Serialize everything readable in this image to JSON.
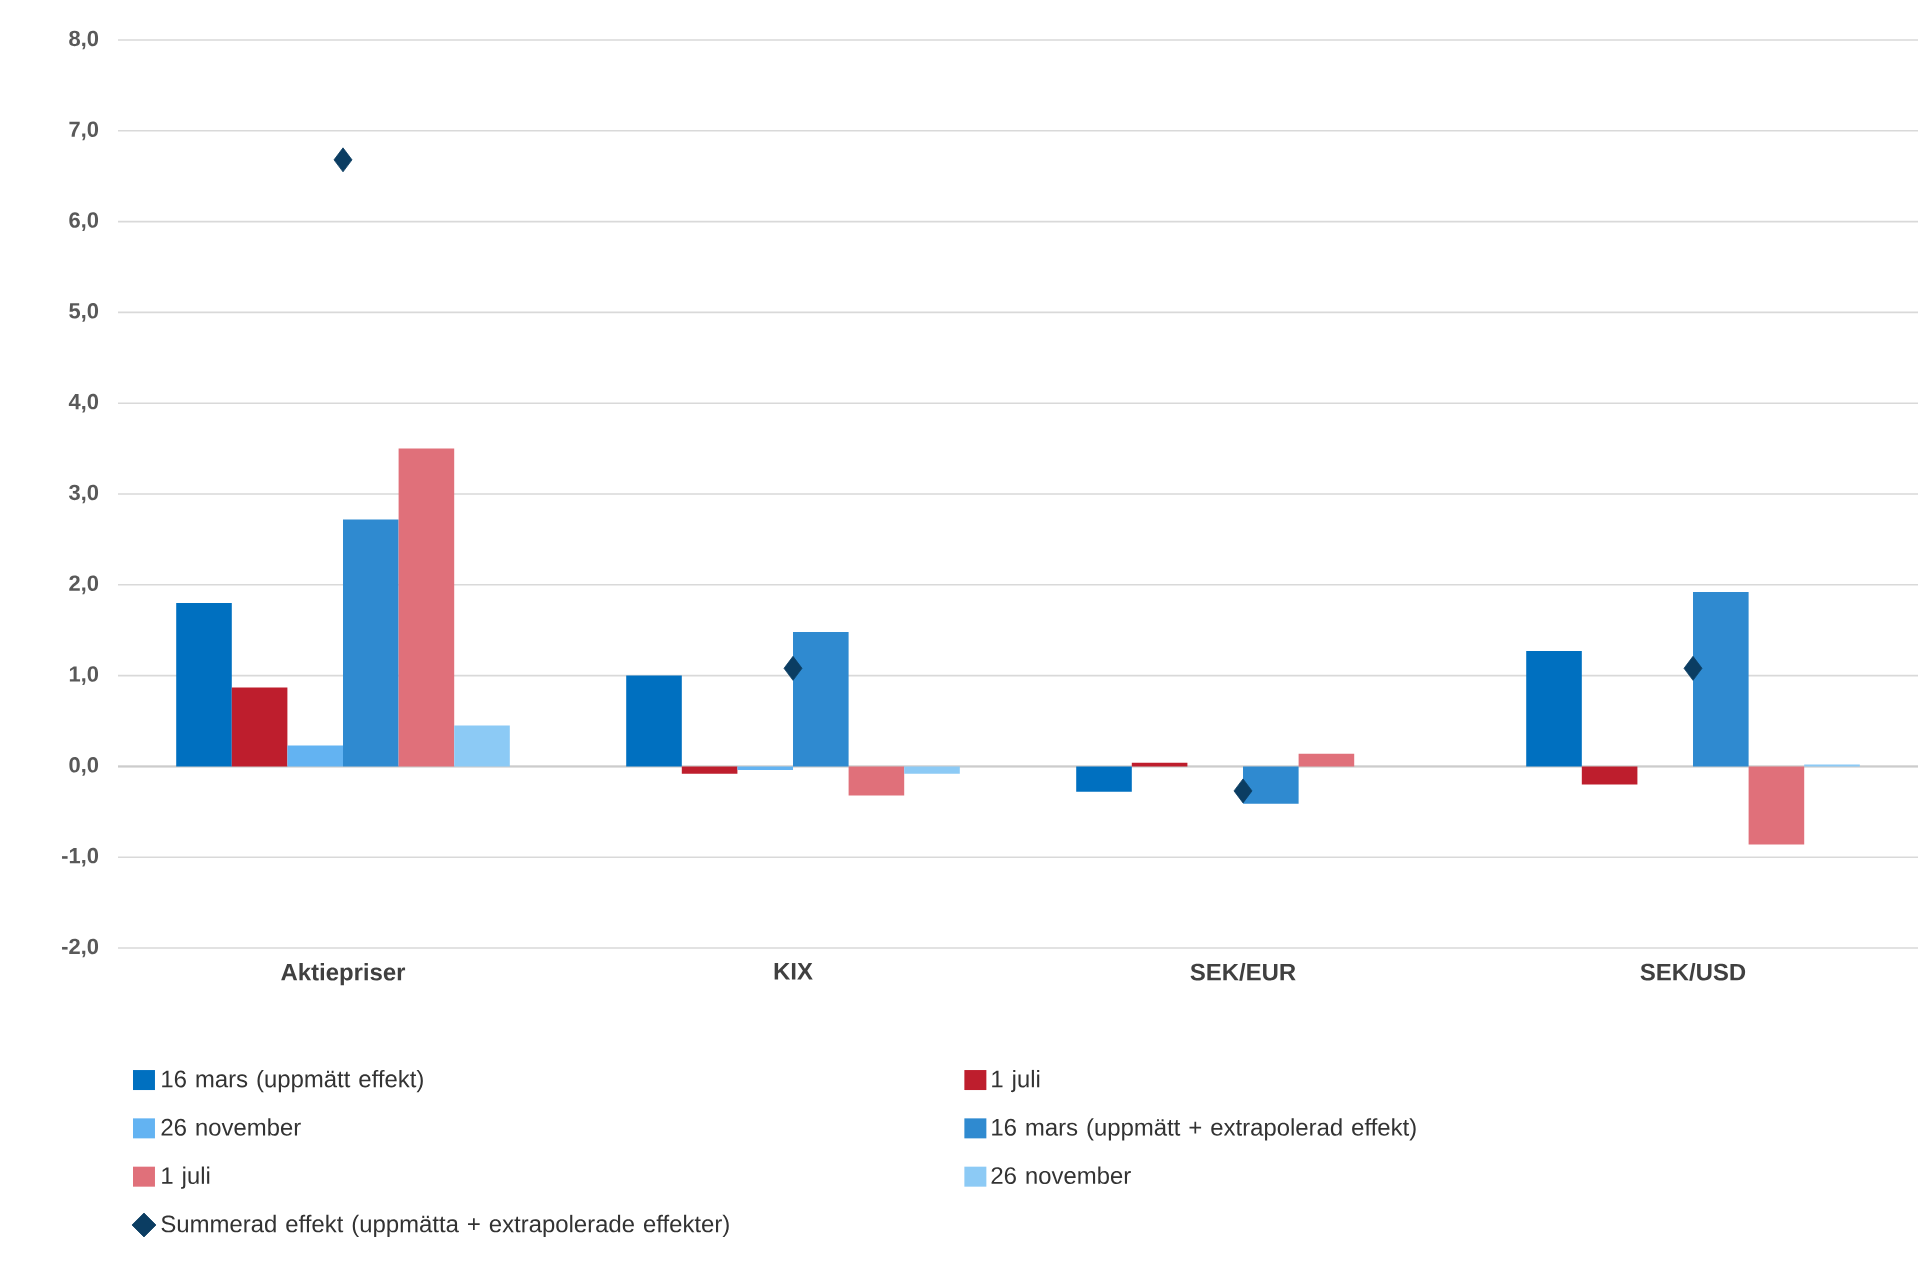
{
  "chart_data": {
    "type": "bar",
    "categories": [
      "Aktiepriser",
      "KIX",
      "SEK/EUR",
      "SEK/USD"
    ],
    "series": [
      {
        "name": "16 mars (uppmätt effekt)",
        "color": "#0070c0",
        "values": [
          1.8,
          1.0,
          -0.28,
          1.27
        ]
      },
      {
        "name": "1 juli",
        "color": "#be1e2d",
        "values": [
          0.87,
          -0.08,
          0.04,
          -0.2
        ]
      },
      {
        "name": "26 november",
        "color": "#63b3f2",
        "values": [
          0.23,
          -0.04,
          0.0,
          0.0
        ]
      },
      {
        "name": "16 mars (uppmätt + extrapolerad effekt)",
        "color": "#2f8ad0",
        "values": [
          2.72,
          1.48,
          -0.41,
          1.92
        ]
      },
      {
        "name": "1 juli",
        "color": "#e0707a",
        "values": [
          3.5,
          -0.32,
          0.14,
          -0.86
        ]
      },
      {
        "name": "26 november",
        "color": "#8ccaf5",
        "values": [
          0.45,
          -0.08,
          0.0,
          0.02
        ]
      },
      {
        "name": "Summerad effekt (uppmätta + extrapolerade effekter)",
        "color": "#0b3d62",
        "type": "scatter",
        "marker": "diamond",
        "values": [
          6.68,
          1.08,
          -0.27,
          1.08
        ]
      }
    ],
    "ylim": [
      -2,
      8
    ],
    "yticks": [
      {
        "value": -2,
        "label": "-2,0"
      },
      {
        "value": -1,
        "label": "-1,0"
      },
      {
        "value": 0,
        "label": "0,0"
      },
      {
        "value": 1,
        "label": "1,0"
      },
      {
        "value": 2,
        "label": "2,0"
      },
      {
        "value": 3,
        "label": "3,0"
      },
      {
        "value": 4,
        "label": "4,0"
      },
      {
        "value": 5,
        "label": "5,0"
      },
      {
        "value": 6,
        "label": "6,0"
      },
      {
        "value": 7,
        "label": "7,0"
      },
      {
        "value": 8,
        "label": "8,0"
      }
    ],
    "grid": "y",
    "legend": "bottom"
  }
}
